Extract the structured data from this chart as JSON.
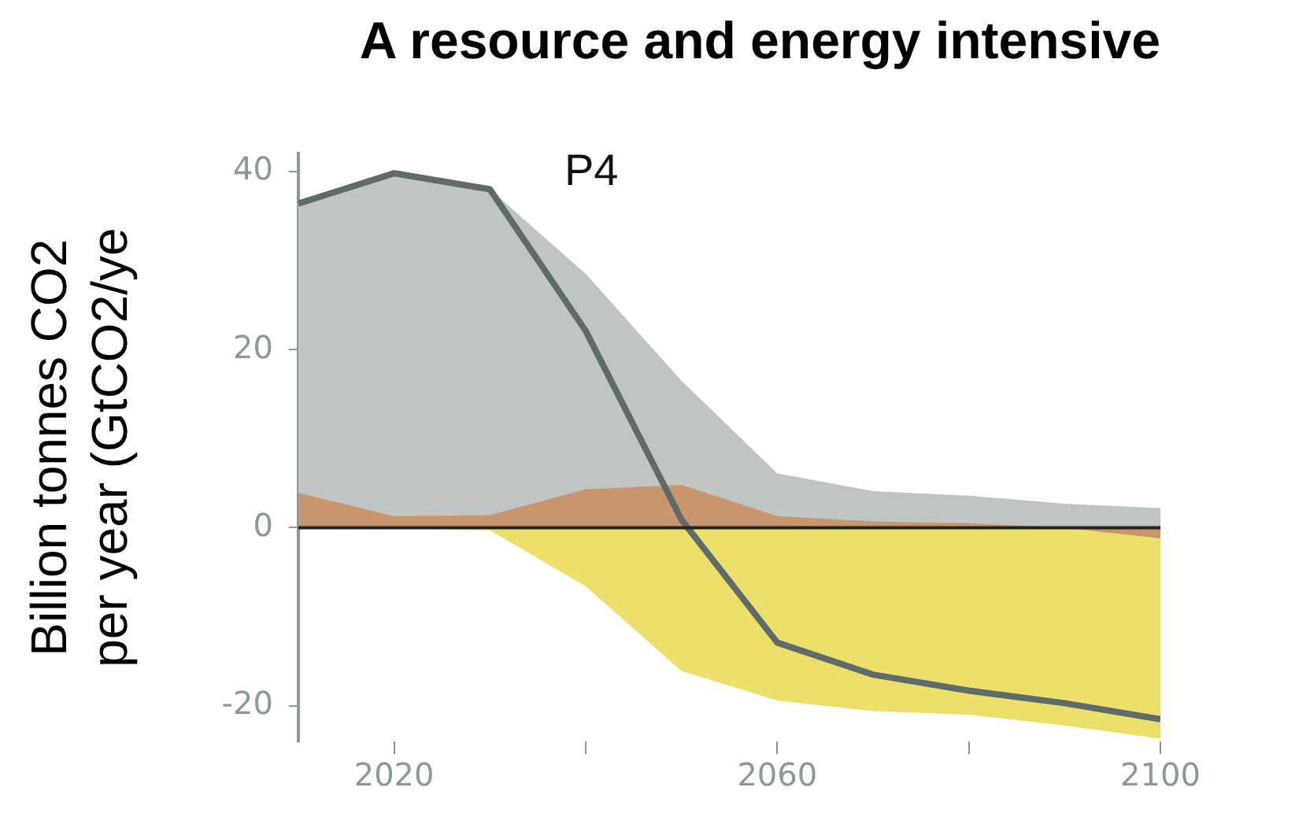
{
  "chart_data": {
    "type": "area",
    "title": "A resource and energy intensive",
    "ylabel": "Billion tonnes CO2 per year (GtCO2/ye",
    "x": [
      2010,
      2020,
      2030,
      2040,
      2050,
      2060,
      2070,
      2080,
      2090,
      2100
    ],
    "series": [
      {
        "color": "#bec5c3",
        "values": [
          36.4,
          39.8,
          38.0,
          28.5,
          16.5,
          6.1,
          4.1,
          3.6,
          2.7,
          2.2
        ]
      },
      {
        "color": "#ece06a",
        "values": [
          0,
          0,
          -0.3,
          -6.6,
          -16.1,
          -19.4,
          -20.6,
          -21.0,
          -22.2,
          -23.7
        ]
      },
      {
        "color": "#c8956c",
        "values": [
          3.9,
          1.3,
          1.4,
          4.3,
          4.8,
          1.3,
          0.7,
          0.5,
          0,
          -1.2
        ]
      },
      {
        "type": "line",
        "color": "#5e6b69",
        "values": [
          36.4,
          39.8,
          38.0,
          22.1,
          0.9,
          -12.9,
          -16.5,
          -18.3,
          -19.7,
          -21.5
        ]
      }
    ],
    "xlim": [
      2010,
      2100
    ],
    "xticks": [
      2020,
      {
        "value": 2040,
        "label": null
      },
      2060,
      {
        "value": 2080,
        "label": null
      },
      2100
    ],
    "ylim": [
      -24,
      42
    ],
    "yticks": [
      -20,
      0,
      20,
      40
    ],
    "ref_lines": [
      {
        "axis": "y",
        "value": 0,
        "color": "#222222"
      }
    ],
    "annotations": [
      "P4"
    ],
    "grid": false,
    "legend": false,
    "marker": "none",
    "line_style": "solid"
  }
}
